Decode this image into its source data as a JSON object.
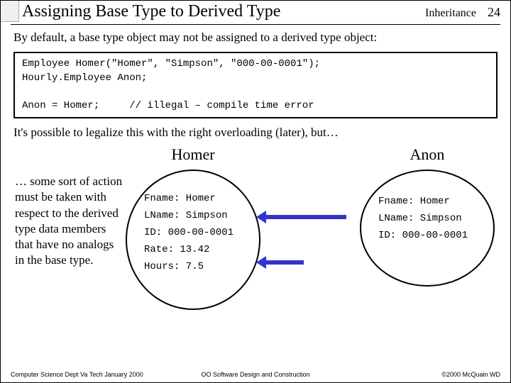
{
  "header": {
    "title": "Assigning Base Type to Derived Type",
    "topic": "Inheritance",
    "page": "24"
  },
  "intro": "By default, a base type object may not be assigned to a derived type object:",
  "code": {
    "line1": "Employee Homer(\"Homer\", \"Simpson\", \"000-00-0001\");",
    "line2": "Hourly.Employee Anon;",
    "line3": "Anon = Homer;     // illegal – compile time error"
  },
  "after": "It's possible to legalize this with the right overloading (later), but…",
  "para": "… some sort of action must be taken with respect to the derived type data members that have no analogs in the base type.",
  "homer": {
    "title": "Homer",
    "f": "Fname: Homer",
    "l": "LName: Simpson",
    "id": "ID: 000-00-0001",
    "rate": "Rate: 13.42",
    "hours": "Hours: 7.5"
  },
  "anon": {
    "title": "Anon",
    "f": "Fname: Homer",
    "l": "LName: Simpson",
    "id": "ID: 000-00-0001"
  },
  "footer": {
    "left": "Computer Science Dept Va Tech January 2000",
    "center": "OO Software Design and Construction",
    "right": "©2000 McQuain WD"
  },
  "colors": {
    "arrow": "#3333cc"
  }
}
